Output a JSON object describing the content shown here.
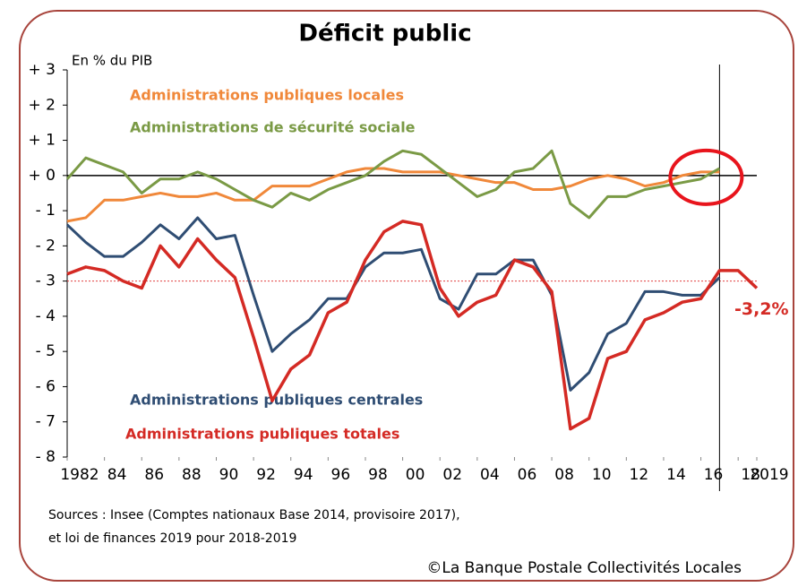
{
  "chart_data": {
    "type": "line",
    "title": "Déficit public",
    "subtitle": "En % du PIB",
    "x": [
      1982,
      1983,
      1984,
      1985,
      1986,
      1987,
      1988,
      1989,
      1990,
      1991,
      1992,
      1993,
      1994,
      1995,
      1996,
      1997,
      1998,
      1999,
      2000,
      2001,
      2002,
      2003,
      2004,
      2005,
      2006,
      2007,
      2008,
      2009,
      2010,
      2011,
      2012,
      2013,
      2014,
      2015,
      2016,
      2017,
      2018,
      2019
    ],
    "series": [
      {
        "name": "Administrations publiques locales",
        "color": "#f0883a",
        "values": [
          -1.3,
          -1.2,
          -0.7,
          -0.7,
          -0.6,
          -0.5,
          -0.6,
          -0.6,
          -0.5,
          -0.7,
          -0.7,
          -0.3,
          -0.3,
          -0.3,
          -0.1,
          0.1,
          0.2,
          0.2,
          0.1,
          0.1,
          0.1,
          0,
          -0.1,
          -0.2,
          -0.2,
          -0.4,
          -0.4,
          -0.3,
          -0.1,
          0,
          -0.1,
          -0.3,
          -0.2,
          0,
          0.1,
          0.1,
          null,
          null
        ]
      },
      {
        "name": "Administrations de sécurité sociale",
        "color": "#7a9a45",
        "values": [
          -0.1,
          0.5,
          0.3,
          0.1,
          -0.5,
          -0.1,
          -0.1,
          0.1,
          -0.1,
          -0.4,
          -0.7,
          -0.9,
          -0.5,
          -0.7,
          -0.4,
          -0.2,
          0,
          0.4,
          0.7,
          0.6,
          0.2,
          -0.2,
          -0.6,
          -0.4,
          0.1,
          0.2,
          0.7,
          -0.8,
          -1.2,
          -0.6,
          -0.6,
          -0.4,
          -0.3,
          -0.2,
          -0.1,
          0.2,
          null,
          null
        ]
      },
      {
        "name": "Administrations publiques centrales",
        "color": "#2f4d73",
        "values": [
          -1.4,
          -1.9,
          -2.3,
          -2.3,
          -1.9,
          -1.4,
          -1.8,
          -1.2,
          -1.8,
          -1.7,
          -3.4,
          -5.0,
          -4.5,
          -4.1,
          -3.5,
          -3.5,
          -2.6,
          -2.2,
          -2.2,
          -2.1,
          -3.5,
          -3.8,
          -2.8,
          -2.8,
          -2.4,
          -2.4,
          -3.4,
          -6.1,
          -5.6,
          -4.5,
          -4.2,
          -3.3,
          -3.3,
          -3.4,
          -3.4,
          -2.9,
          null,
          null
        ]
      },
      {
        "name": "Administrations publiques totales",
        "color": "#d42a24",
        "values": [
          -2.8,
          -2.6,
          -2.7,
          -3.0,
          -3.2,
          -2.0,
          -2.6,
          -1.8,
          -2.4,
          -2.9,
          -4.6,
          -6.4,
          -5.5,
          -5.1,
          -3.9,
          -3.6,
          -2.4,
          -1.6,
          -1.3,
          -1.4,
          -3.2,
          -4.0,
          -3.6,
          -3.4,
          -2.4,
          -2.6,
          -3.3,
          -7.2,
          -6.9,
          -5.2,
          -5.0,
          -4.1,
          -3.9,
          -3.6,
          -3.5,
          -2.7,
          -2.7,
          -3.2
        ],
        "value_labels": [
          null,
          null,
          null,
          null,
          null,
          null,
          null,
          null,
          null,
          null,
          null,
          null,
          null,
          null,
          null,
          null,
          null,
          null,
          null,
          null,
          null,
          null,
          null,
          null,
          null,
          null,
          null,
          null,
          null,
          null,
          null,
          null,
          null,
          null,
          null,
          null,
          null,
          "-3,2%"
        ]
      }
    ],
    "xlim": [
      1982,
      2019
    ],
    "xticks": [
      1982,
      {
        "value": 1984,
        "label": "84"
      },
      {
        "value": 1986,
        "label": "86"
      },
      {
        "value": 1988,
        "label": "88"
      },
      {
        "value": 1990,
        "label": "90"
      },
      {
        "value": 1992,
        "label": "92"
      },
      {
        "value": 1994,
        "label": "94"
      },
      {
        "value": 1996,
        "label": "96"
      },
      {
        "value": 1998,
        "label": "98"
      },
      {
        "value": 2000,
        "label": "00"
      },
      {
        "value": 2002,
        "label": "02"
      },
      {
        "value": 2004,
        "label": "04"
      },
      {
        "value": 2006,
        "label": "06"
      },
      {
        "value": 2008,
        "label": "08"
      },
      {
        "value": 2010,
        "label": "10"
      },
      {
        "value": 2012,
        "label": "12"
      },
      {
        "value": 2014,
        "label": "14"
      },
      {
        "value": 2016,
        "label": "16"
      },
      {
        "value": 2018,
        "label": "18"
      },
      2019
    ],
    "ylim": [
      -8,
      3
    ],
    "yticks": [
      {
        "value": 3,
        "label": "+ 3"
      },
      {
        "value": 2,
        "label": "+ 2"
      },
      {
        "value": 1,
        "label": "+ 1"
      },
      {
        "value": 0,
        "label": "+ 0"
      },
      {
        "value": -1,
        "label": "- 1"
      },
      {
        "value": -2,
        "label": "- 2"
      },
      {
        "value": -3,
        "label": "- 3"
      },
      {
        "value": -4,
        "label": "- 4"
      },
      {
        "value": -5,
        "label": "- 5"
      },
      {
        "value": -6,
        "label": "- 6"
      },
      {
        "value": -7,
        "label": "- 7"
      },
      {
        "value": -8,
        "label": "- 8"
      }
    ],
    "reference_line": -3,
    "vertical_line": 2017,
    "source": [
      "Sources : Insee (Comptes nationaux Base 2014, provisoire 2017),",
      "et loi de finances 2019 pour 2018-2019"
    ],
    "credit": "©La Banque Postale Collectivités Locales"
  }
}
